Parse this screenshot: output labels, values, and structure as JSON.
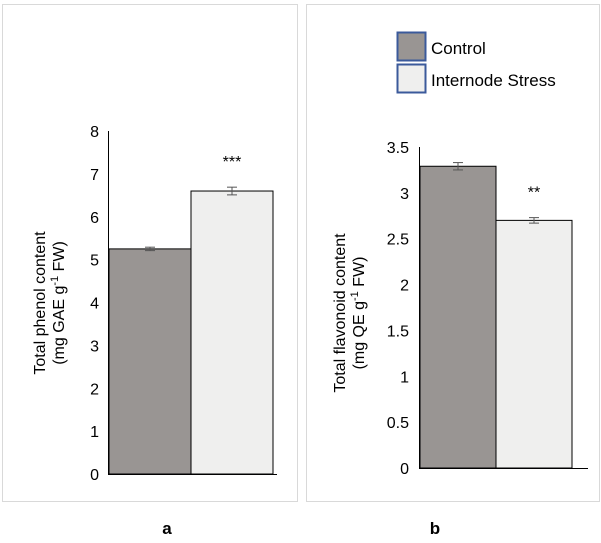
{
  "legend": {
    "items": [
      {
        "label": "Control",
        "color": "#999593"
      },
      {
        "label": "Internode Stress",
        "color": "#efefee"
      }
    ],
    "border_color": "#3b5a9b"
  },
  "chart_data": [
    {
      "type": "bar",
      "panel_label": "a",
      "ylabel_line1": "Total phenol content",
      "ylabel_line2_pre": "(mg GAE g",
      "ylabel_line2_sup": "-1",
      "ylabel_line2_post": " FW)",
      "ylim": [
        0,
        8
      ],
      "yticks": [
        {
          "v": 0,
          "label": "0"
        },
        {
          "v": 1,
          "label": "1"
        },
        {
          "v": 2,
          "label": "2"
        },
        {
          "v": 3,
          "label": "3"
        },
        {
          "v": 4,
          "label": "4"
        },
        {
          "v": 5,
          "label": "5"
        },
        {
          "v": 6,
          "label": "6"
        },
        {
          "v": 7,
          "label": "7"
        },
        {
          "v": 8,
          "label": "8"
        }
      ],
      "series": [
        {
          "name": "Control",
          "value": 5.25,
          "error": 0.04
        },
        {
          "name": "Internode Stress",
          "value": 6.6,
          "error": 0.09
        }
      ],
      "significance": {
        "series": "Internode Stress",
        "label": "***"
      }
    },
    {
      "type": "bar",
      "panel_label": "b",
      "ylabel_line1": "Total flavonoid content",
      "ylabel_line2_pre": "(mg QE g",
      "ylabel_line2_sup": "-1",
      "ylabel_line2_post": " FW)",
      "ylim": [
        0,
        3.5
      ],
      "yticks": [
        {
          "v": 0,
          "label": "0"
        },
        {
          "v": 0.5,
          "label": "0.5"
        },
        {
          "v": 1,
          "label": "1"
        },
        {
          "v": 1.5,
          "label": "1.5"
        },
        {
          "v": 2,
          "label": "2"
        },
        {
          "v": 2.5,
          "label": "2.5"
        },
        {
          "v": 3,
          "label": "3"
        },
        {
          "v": 3.5,
          "label": "3.5"
        }
      ],
      "series": [
        {
          "name": "Control",
          "value": 3.29,
          "error": 0.04
        },
        {
          "name": "Internode Stress",
          "value": 2.7,
          "error": 0.03
        }
      ],
      "significance": {
        "series": "Internode Stress",
        "label": "**"
      }
    }
  ]
}
